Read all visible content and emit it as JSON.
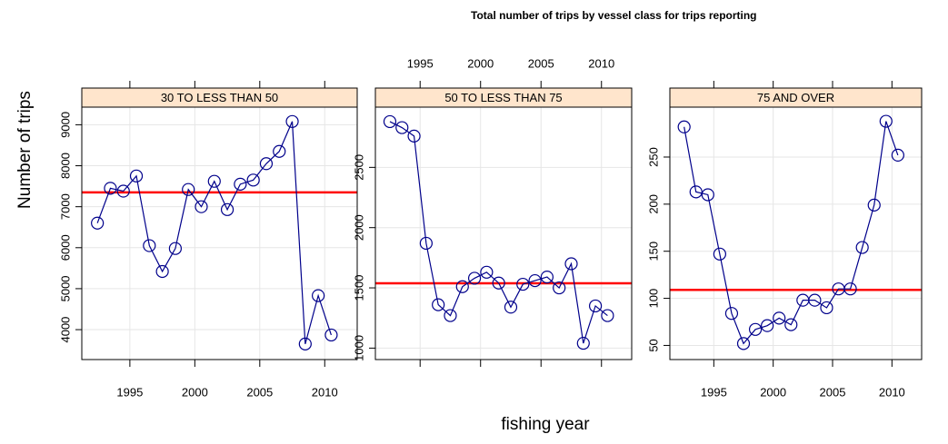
{
  "chart_data": {
    "type": "line",
    "title": "Total number of trips by vessel class for trips reporting",
    "x_label": "fishing year",
    "y_label": "Number of trips",
    "x": [
      1992.5,
      1993.5,
      1994.5,
      1995.5,
      1996.5,
      1997.5,
      1998.5,
      1999.5,
      2000.5,
      2001.5,
      2002.5,
      2003.5,
      2004.5,
      2005.5,
      2006.5,
      2007.5,
      2008.5,
      2009.5,
      2010.5
    ],
    "xlim": [
      1991.3,
      2012.5
    ],
    "xticks": [
      1995,
      2000,
      2005,
      2010
    ],
    "color": "#00008b",
    "hline_color": "#ff0000",
    "strip_color": "#ffe5cc",
    "grid": true,
    "panels": [
      {
        "name": "30 TO LESS THAN 50",
        "values": [
          6600,
          7450,
          7380,
          7750,
          6050,
          5420,
          5980,
          7420,
          7000,
          7620,
          6930,
          7550,
          7650,
          8050,
          8350,
          9080,
          3650,
          4830,
          3870
        ],
        "ylim": [
          3270,
          9430
        ],
        "yticks": [
          4000,
          5000,
          6000,
          7000,
          8000,
          9000
        ],
        "hline": 7350
      },
      {
        "name": "50 TO LESS THAN 75",
        "values": [
          2880,
          2830,
          2760,
          1870,
          1360,
          1270,
          1510,
          1580,
          1630,
          1540,
          1340,
          1530,
          1560,
          1590,
          1500,
          1700,
          1040,
          1350,
          1270
        ],
        "ylim": [
          905,
          3000
        ],
        "yticks": [
          1000,
          1500,
          2000,
          2500
        ],
        "hline": 1538
      },
      {
        "name": "75 AND OVER",
        "values": [
          282,
          213,
          210,
          147,
          84,
          52,
          67,
          71,
          79,
          72,
          98,
          98,
          90,
          110,
          110,
          154,
          199,
          288,
          252
        ],
        "ylim": [
          35,
          303
        ],
        "yticks": [
          50,
          100,
          150,
          200,
          250
        ],
        "hline": 109
      }
    ]
  }
}
